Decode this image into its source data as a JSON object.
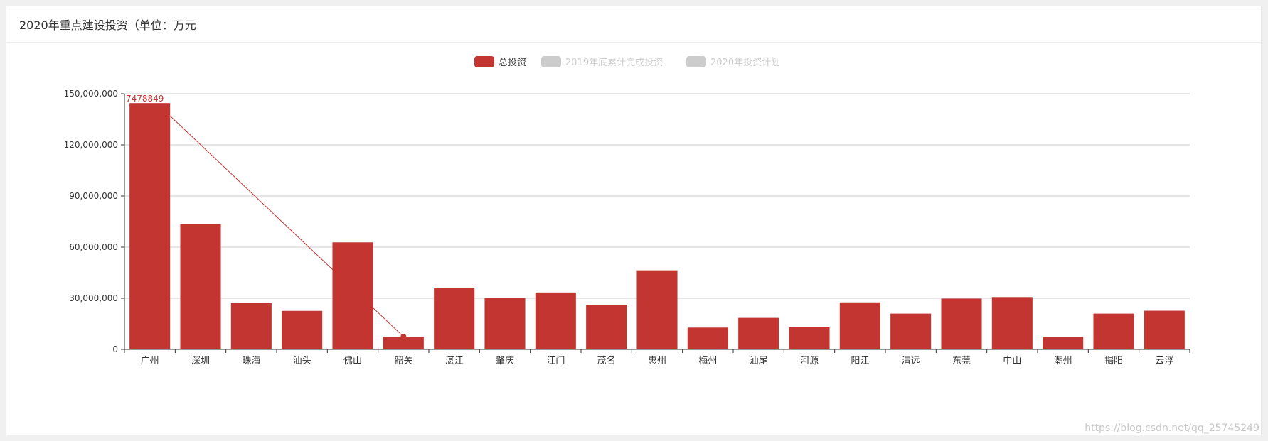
{
  "panel": {
    "title": "2020年重点建设投资（单位：万元"
  },
  "watermark": "https://blog.csdn.net/qq_25745249",
  "colors": {
    "primary": "#c23531",
    "legend_inactive": "#cccccc",
    "axis": "#333333",
    "grid": "#cccccc"
  },
  "chart_data": {
    "type": "bar",
    "title": "2020年重点建设投资（单位：万元",
    "categories": [
      "广州",
      "深圳",
      "珠海",
      "汕头",
      "佛山",
      "韶关",
      "湛江",
      "肇庆",
      "江门",
      "茂名",
      "惠州",
      "梅州",
      "汕尾",
      "河源",
      "阳江",
      "清远",
      "东莞",
      "中山",
      "潮州",
      "揭阳",
      "云浮"
    ],
    "series": [
      {
        "name": "总投资",
        "active": true,
        "color": "#c23531",
        "values": [
          144500000,
          73500000,
          27200000,
          22600000,
          62800000,
          7478849,
          36200000,
          30200000,
          33400000,
          26200000,
          46400000,
          12800000,
          18500000,
          13000000,
          27600000,
          21000000,
          29800000,
          30700000,
          7500000,
          21000000,
          22700000
        ]
      },
      {
        "name": "2019年底累计完成投资",
        "active": false,
        "color": "#cccccc"
      },
      {
        "name": "2020年投资计划",
        "active": false,
        "color": "#cccccc"
      }
    ],
    "annotations": [
      {
        "type": "markPoint",
        "category": "韶关",
        "value": 7478849,
        "label": "7478849"
      }
    ],
    "ylim": [
      0,
      150000000
    ],
    "yticks": [
      0,
      30000000,
      60000000,
      90000000,
      120000000,
      150000000
    ],
    "ytick_labels": [
      "0",
      "30,000,000",
      "60,000,000",
      "90,000,000",
      "120,000,000",
      "150,000,000"
    ],
    "grid": true,
    "legend_position": "top-center",
    "xlabel": "",
    "ylabel": ""
  }
}
